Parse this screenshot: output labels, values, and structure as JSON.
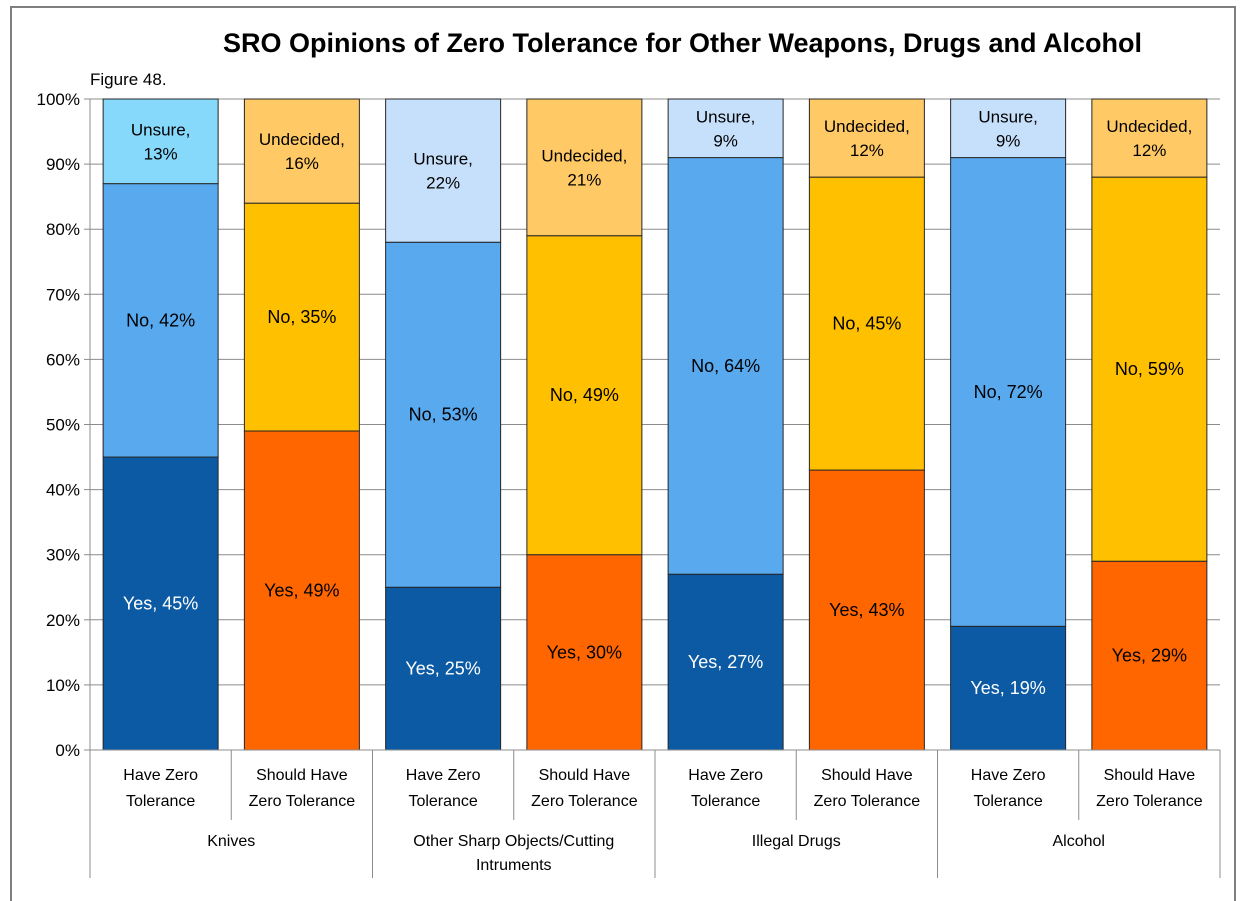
{
  "figure_label": "Figure 48.",
  "chart_data": {
    "type": "bar",
    "stacked": true,
    "title": "SRO Opinions of Zero Tolerance for Other Weapons, Drugs and Alcohol",
    "y_ticks": [
      "0%",
      "10%",
      "20%",
      "30%",
      "40%",
      "50%",
      "60%",
      "70%",
      "80%",
      "90%",
      "100%"
    ],
    "ylim": [
      0,
      100
    ],
    "groups": [
      {
        "name": "Knives",
        "name_lines": [
          "Knives"
        ]
      },
      {
        "name": "Other Sharp Objects/Cutting Intruments",
        "name_lines": [
          "Other Sharp Objects/Cutting",
          "Intruments"
        ]
      },
      {
        "name": "Illegal Drugs",
        "name_lines": [
          "Illegal Drugs"
        ]
      },
      {
        "name": "Alcohol",
        "name_lines": [
          "Alcohol"
        ]
      }
    ],
    "bars": [
      {
        "group": 0,
        "category_lines": [
          "Have Zero",
          "Tolerance"
        ],
        "kind": "have",
        "segments": [
          {
            "label": "Yes, 45%",
            "value": 45,
            "color": "#0b5aa3",
            "text_color": "#ffffff"
          },
          {
            "label": "No, 42%",
            "value": 42,
            "color": "#59a9ef",
            "text_color": "#000000"
          },
          {
            "label_lines": [
              "Unsure,",
              "13%"
            ],
            "value": 13,
            "color": "#87d9fb",
            "text_color": "#000000"
          }
        ]
      },
      {
        "group": 0,
        "category_lines": [
          "Should Have",
          "Zero Tolerance"
        ],
        "kind": "should",
        "segments": [
          {
            "label": "Yes, 49%",
            "value": 49,
            "color": "#ff6600",
            "text_color": "#000000"
          },
          {
            "label": "No, 35%",
            "value": 35,
            "color": "#ffc000",
            "text_color": "#000000"
          },
          {
            "label_lines": [
              "Undecided,",
              "16%"
            ],
            "value": 16,
            "color": "#ffc966",
            "text_color": "#000000"
          }
        ]
      },
      {
        "group": 1,
        "category_lines": [
          "Have Zero",
          "Tolerance"
        ],
        "kind": "have",
        "segments": [
          {
            "label": "Yes, 25%",
            "value": 25,
            "color": "#0b5aa3",
            "text_color": "#ffffff"
          },
          {
            "label": "No, 53%",
            "value": 53,
            "color": "#59a9ef",
            "text_color": "#000000"
          },
          {
            "label_lines": [
              "Unsure,",
              "22%"
            ],
            "value": 22,
            "color": "#c6e0fb",
            "text_color": "#000000"
          }
        ]
      },
      {
        "group": 1,
        "category_lines": [
          "Should Have",
          "Zero Tolerance"
        ],
        "kind": "should",
        "segments": [
          {
            "label": "Yes, 30%",
            "value": 30,
            "color": "#ff6600",
            "text_color": "#000000"
          },
          {
            "label": "No, 49%",
            "value": 49,
            "color": "#ffc000",
            "text_color": "#000000"
          },
          {
            "label_lines": [
              "Undecided,",
              "21%"
            ],
            "value": 21,
            "color": "#ffc966",
            "text_color": "#000000"
          }
        ]
      },
      {
        "group": 2,
        "category_lines": [
          "Have Zero",
          "Tolerance"
        ],
        "kind": "have",
        "segments": [
          {
            "label": "Yes, 27%",
            "value": 27,
            "color": "#0b5aa3",
            "text_color": "#ffffff"
          },
          {
            "label": "No, 64%",
            "value": 64,
            "color": "#59a9ef",
            "text_color": "#000000"
          },
          {
            "label_lines": [
              "Unsure,",
              "9%"
            ],
            "value": 9,
            "color": "#c6e0fb",
            "text_color": "#000000"
          }
        ]
      },
      {
        "group": 2,
        "category_lines": [
          "Should Have",
          "Zero Tolerance"
        ],
        "kind": "should",
        "segments": [
          {
            "label": "Yes, 43%",
            "value": 43,
            "color": "#ff6600",
            "text_color": "#000000"
          },
          {
            "label": "No, 45%",
            "value": 45,
            "color": "#ffc000",
            "text_color": "#000000"
          },
          {
            "label_lines": [
              "Undecided,",
              "12%"
            ],
            "value": 12,
            "color": "#ffc966",
            "text_color": "#000000"
          }
        ]
      },
      {
        "group": 3,
        "category_lines": [
          "Have Zero",
          "Tolerance"
        ],
        "kind": "have",
        "segments": [
          {
            "label": "Yes, 19%",
            "value": 19,
            "color": "#0b5aa3",
            "text_color": "#ffffff"
          },
          {
            "label": "No, 72%",
            "value": 72,
            "color": "#59a9ef",
            "text_color": "#000000"
          },
          {
            "label_lines": [
              "Unsure,",
              "9%"
            ],
            "value": 9,
            "color": "#c6e0fb",
            "text_color": "#000000"
          }
        ]
      },
      {
        "group": 3,
        "category_lines": [
          "Should Have",
          "Zero Tolerance"
        ],
        "kind": "should",
        "segments": [
          {
            "label": "Yes, 29%",
            "value": 29,
            "color": "#ff6600",
            "text_color": "#000000"
          },
          {
            "label": "No, 59%",
            "value": 59,
            "color": "#ffc000",
            "text_color": "#000000"
          },
          {
            "label_lines": [
              "Undecided,",
              "12%"
            ],
            "value": 12,
            "color": "#ffc966",
            "text_color": "#000000"
          }
        ]
      }
    ],
    "grid": true,
    "legend": "none"
  }
}
